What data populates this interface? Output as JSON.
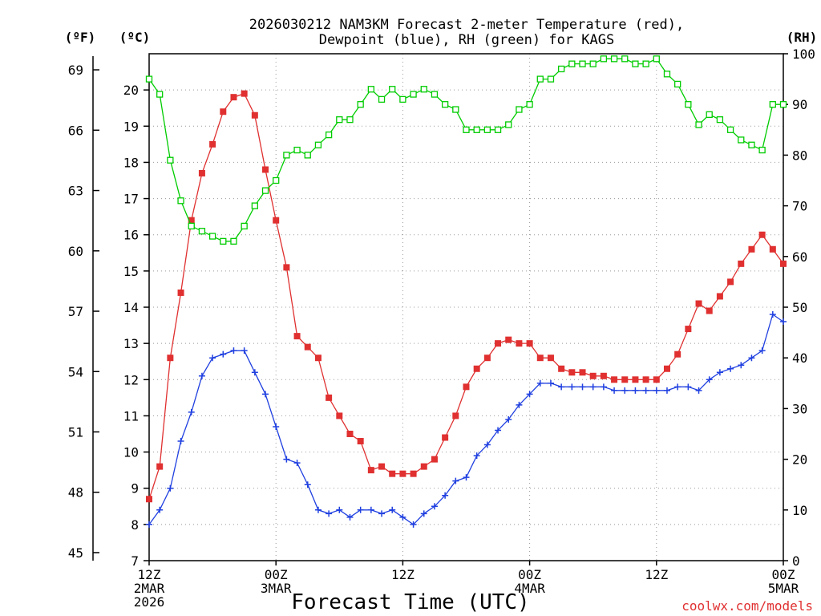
{
  "chart_data": {
    "type": "line",
    "title_lines": [
      "2026030212 NAM3KM Forecast 2-meter Temperature (red),",
      "Dewpoint (blue), RH (green) for KAGS"
    ],
    "xlabel": "Forecast Time (UTC)",
    "credit": "coolwx.com/models",
    "units": {
      "fahrenheit": "(ºF)",
      "celsius": "(ºC)",
      "rh": "(RH)"
    },
    "x_ticks": [
      {
        "hour": 0,
        "lines": [
          "12Z",
          "2MAR",
          "2026"
        ]
      },
      {
        "hour": 12,
        "lines": [
          "00Z",
          "3MAR"
        ]
      },
      {
        "hour": 24,
        "lines": [
          "12Z"
        ]
      },
      {
        "hour": 36,
        "lines": [
          "00Z",
          "4MAR"
        ]
      },
      {
        "hour": 48,
        "lines": [
          "12Z"
        ]
      },
      {
        "hour": 60,
        "lines": [
          "00Z",
          "5MAR"
        ]
      }
    ],
    "x_range": [
      0,
      60
    ],
    "celsius_axis": {
      "range": [
        7,
        21
      ],
      "ticks": [
        7,
        8,
        9,
        10,
        11,
        12,
        13,
        14,
        15,
        16,
        17,
        18,
        19,
        20
      ]
    },
    "fahrenheit_axis": {
      "ticks": [
        45,
        48,
        51,
        54,
        57,
        60,
        63,
        66,
        69
      ]
    },
    "rh_axis": {
      "range": [
        0,
        100
      ],
      "ticks": [
        0,
        10,
        20,
        30,
        40,
        50,
        60,
        70,
        80,
        90,
        100
      ]
    },
    "series": [
      {
        "name": "2-meter Temperature",
        "axis": "celsius",
        "color": "#e03030",
        "marker": "filled-square",
        "values": [
          8.7,
          9.6,
          12.6,
          14.4,
          16.4,
          17.7,
          18.5,
          19.4,
          19.8,
          19.9,
          19.3,
          17.8,
          16.4,
          15.1,
          13.2,
          12.9,
          12.6,
          11.5,
          11.0,
          10.5,
          10.3,
          9.5,
          9.6,
          9.4,
          9.4,
          9.4,
          9.6,
          9.8,
          10.4,
          11.0,
          11.8,
          12.3,
          12.6,
          13.0,
          13.1,
          13.0,
          13.0,
          12.6,
          12.6,
          12.3,
          12.2,
          12.2,
          12.1,
          12.1,
          12.0,
          12.0,
          12.0,
          12.0,
          12.0,
          12.3,
          12.7,
          13.4,
          14.1,
          13.9,
          14.3,
          14.7,
          15.2,
          15.6,
          16.0,
          15.6,
          15.2
        ]
      },
      {
        "name": "Dewpoint",
        "axis": "celsius",
        "color": "#2040e0",
        "marker": "plus",
        "values": [
          8.0,
          8.4,
          9.0,
          10.3,
          11.1,
          12.1,
          12.6,
          12.7,
          12.8,
          12.8,
          12.2,
          11.6,
          10.7,
          9.8,
          9.7,
          9.1,
          8.4,
          8.3,
          8.4,
          8.2,
          8.4,
          8.4,
          8.3,
          8.4,
          8.2,
          8.0,
          8.3,
          8.5,
          8.8,
          9.2,
          9.3,
          9.9,
          10.2,
          10.6,
          10.9,
          11.3,
          11.6,
          11.9,
          11.9,
          11.8,
          11.8,
          11.8,
          11.8,
          11.8,
          11.7,
          11.7,
          11.7,
          11.7,
          11.7,
          11.7,
          11.8,
          11.8,
          11.7,
          12.0,
          12.2,
          12.3,
          12.4,
          12.6,
          12.8,
          13.8,
          13.6
        ]
      },
      {
        "name": "RH",
        "axis": "rh",
        "color": "#00cc00",
        "marker": "open-square",
        "values": [
          95,
          92,
          79,
          71,
          66,
          65,
          64,
          63,
          63,
          66,
          70,
          73,
          75,
          80,
          81,
          80,
          82,
          84,
          87,
          87,
          90,
          93,
          91,
          93,
          91,
          92,
          93,
          92,
          90,
          89,
          85,
          85,
          85,
          85,
          86,
          89,
          90,
          95,
          95,
          97,
          98,
          98,
          98,
          99,
          99,
          99,
          98,
          98,
          99,
          96,
          94,
          90,
          86,
          88,
          87,
          85,
          83,
          82,
          81,
          90,
          90
        ]
      }
    ]
  }
}
